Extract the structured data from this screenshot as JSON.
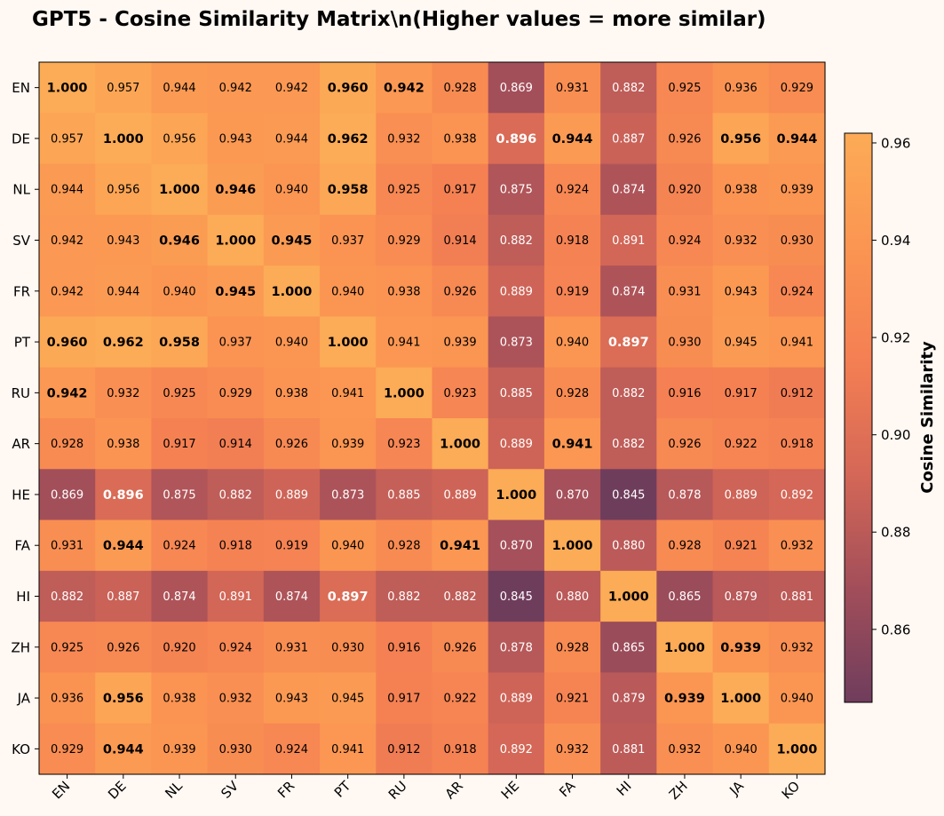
{
  "chart_data": {
    "type": "heatmap",
    "title": "GPT5 - Cosine Similarity Matrix\\n(Higher values = more similar)",
    "colorbar_label": "Cosine Similarity",
    "colorbar_ticks": [
      "0.86",
      "0.88",
      "0.90",
      "0.92",
      "0.94",
      "0.96"
    ],
    "colorbar_range": [
      0.845,
      0.962
    ],
    "labels": [
      "EN",
      "DE",
      "NL",
      "SV",
      "FR",
      "PT",
      "RU",
      "AR",
      "HE",
      "FA",
      "HI",
      "ZH",
      "JA",
      "KO"
    ],
    "values": [
      [
        1.0,
        0.957,
        0.944,
        0.942,
        0.942,
        0.96,
        0.942,
        0.928,
        0.869,
        0.931,
        0.882,
        0.925,
        0.936,
        0.929
      ],
      [
        0.957,
        1.0,
        0.956,
        0.943,
        0.944,
        0.962,
        0.932,
        0.938,
        0.896,
        0.944,
        0.887,
        0.926,
        0.956,
        0.944
      ],
      [
        0.944,
        0.956,
        1.0,
        0.946,
        0.94,
        0.958,
        0.925,
        0.917,
        0.875,
        0.924,
        0.874,
        0.92,
        0.938,
        0.939
      ],
      [
        0.942,
        0.943,
        0.946,
        1.0,
        0.945,
        0.937,
        0.929,
        0.914,
        0.882,
        0.918,
        0.891,
        0.924,
        0.932,
        0.93
      ],
      [
        0.942,
        0.944,
        0.94,
        0.945,
        1.0,
        0.94,
        0.938,
        0.926,
        0.889,
        0.919,
        0.874,
        0.931,
        0.943,
        0.924
      ],
      [
        0.96,
        0.962,
        0.958,
        0.937,
        0.94,
        1.0,
        0.941,
        0.939,
        0.873,
        0.94,
        0.897,
        0.93,
        0.945,
        0.941
      ],
      [
        0.942,
        0.932,
        0.925,
        0.929,
        0.938,
        0.941,
        1.0,
        0.923,
        0.885,
        0.928,
        0.882,
        0.916,
        0.917,
        0.912
      ],
      [
        0.928,
        0.938,
        0.917,
        0.914,
        0.926,
        0.939,
        0.923,
        1.0,
        0.889,
        0.941,
        0.882,
        0.926,
        0.922,
        0.918
      ],
      [
        0.869,
        0.896,
        0.875,
        0.882,
        0.889,
        0.873,
        0.885,
        0.889,
        1.0,
        0.87,
        0.845,
        0.878,
        0.889,
        0.892
      ],
      [
        0.931,
        0.944,
        0.924,
        0.918,
        0.919,
        0.94,
        0.928,
        0.941,
        0.87,
        1.0,
        0.88,
        0.928,
        0.921,
        0.932
      ],
      [
        0.882,
        0.887,
        0.874,
        0.891,
        0.874,
        0.897,
        0.882,
        0.882,
        0.845,
        0.88,
        1.0,
        0.865,
        0.879,
        0.881
      ],
      [
        0.925,
        0.926,
        0.92,
        0.924,
        0.931,
        0.93,
        0.916,
        0.926,
        0.878,
        0.928,
        0.865,
        1.0,
        0.939,
        0.932
      ],
      [
        0.936,
        0.956,
        0.938,
        0.932,
        0.943,
        0.945,
        0.917,
        0.922,
        0.889,
        0.921,
        0.879,
        0.939,
        1.0,
        0.94
      ],
      [
        0.929,
        0.944,
        0.939,
        0.93,
        0.924,
        0.941,
        0.912,
        0.918,
        0.892,
        0.932,
        0.881,
        0.932,
        0.94,
        1.0
      ]
    ],
    "bold_cells": [
      [
        0,
        0
      ],
      [
        0,
        5
      ],
      [
        0,
        6
      ],
      [
        1,
        1
      ],
      [
        1,
        5
      ],
      [
        1,
        8
      ],
      [
        1,
        9
      ],
      [
        1,
        12
      ],
      [
        1,
        13
      ],
      [
        2,
        2
      ],
      [
        2,
        3
      ],
      [
        2,
        5
      ],
      [
        3,
        2
      ],
      [
        3,
        3
      ],
      [
        3,
        4
      ],
      [
        4,
        3
      ],
      [
        4,
        4
      ],
      [
        5,
        0
      ],
      [
        5,
        1
      ],
      [
        5,
        2
      ],
      [
        5,
        5
      ],
      [
        5,
        10
      ],
      [
        6,
        0
      ],
      [
        6,
        6
      ],
      [
        7,
        7
      ],
      [
        7,
        9
      ],
      [
        8,
        1
      ],
      [
        8,
        8
      ],
      [
        9,
        1
      ],
      [
        9,
        7
      ],
      [
        9,
        9
      ],
      [
        10,
        5
      ],
      [
        10,
        10
      ],
      [
        11,
        11
      ],
      [
        11,
        12
      ],
      [
        12,
        1
      ],
      [
        12,
        11
      ],
      [
        12,
        12
      ],
      [
        13,
        1
      ],
      [
        13,
        13
      ]
    ],
    "colormap": [
      "#6f3d5c",
      "#a24e5a",
      "#d46757",
      "#f47f53",
      "#fb9552",
      "#fcab56"
    ]
  }
}
